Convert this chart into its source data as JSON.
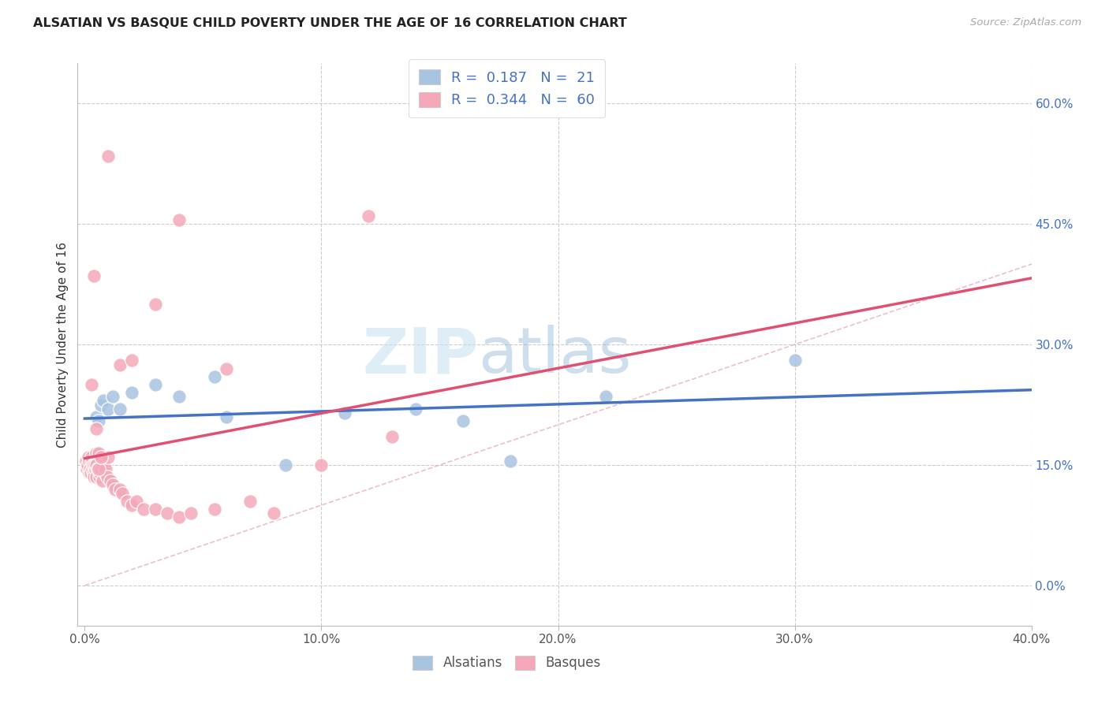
{
  "title": "ALSATIAN VS BASQUE CHILD POVERTY UNDER THE AGE OF 16 CORRELATION CHART",
  "source": "Source: ZipAtlas.com",
  "xlabel_vals": [
    0,
    10,
    20,
    30,
    40
  ],
  "ylabel_vals": [
    0,
    15,
    30,
    45,
    60
  ],
  "ylabel_label": "Child Poverty Under the Age of 16",
  "legend_labels": [
    "Alsatians",
    "Basques"
  ],
  "legend_R": [
    "0.187",
    "0.344"
  ],
  "legend_N": [
    "21",
    "60"
  ],
  "alsatian_color": "#a8c4e0",
  "basque_color": "#f4a8b8",
  "alsatian_line_color": "#4472C4",
  "basque_line_color": "#E05070",
  "diagonal_color": "#e8b0c0",
  "watermark_zip": "ZIP",
  "watermark_atlas": "atlas",
  "als_x": [
    0.2,
    0.3,
    0.5,
    0.6,
    0.7,
    0.8,
    1.0,
    1.2,
    1.5,
    2.0,
    3.0,
    4.0,
    5.5,
    6.0,
    8.5,
    11.0,
    14.0,
    16.0,
    18.0,
    22.0,
    30.0
  ],
  "als_y": [
    14.5,
    15.0,
    21.0,
    20.5,
    22.5,
    23.0,
    22.0,
    23.5,
    22.0,
    24.0,
    25.0,
    23.5,
    26.0,
    21.0,
    15.0,
    21.5,
    22.0,
    20.5,
    15.5,
    23.5,
    28.0
  ],
  "bas_x": [
    0.05,
    0.1,
    0.12,
    0.15,
    0.18,
    0.2,
    0.22,
    0.25,
    0.28,
    0.3,
    0.32,
    0.35,
    0.38,
    0.4,
    0.42,
    0.45,
    0.48,
    0.5,
    0.5,
    0.55,
    0.6,
    0.62,
    0.65,
    0.7,
    0.75,
    0.8,
    0.85,
    0.9,
    0.95,
    1.0,
    1.1,
    1.2,
    1.3,
    1.5,
    1.6,
    1.8,
    2.0,
    2.2,
    2.5,
    3.0,
    3.5,
    4.0,
    4.5,
    5.5,
    6.0,
    7.0,
    8.0,
    10.0,
    12.0,
    13.0,
    0.3,
    0.4,
    0.5,
    0.6,
    0.7,
    1.0,
    1.5,
    2.0,
    3.0,
    4.0
  ],
  "bas_y": [
    15.5,
    14.5,
    15.0,
    16.0,
    14.0,
    15.5,
    14.5,
    14.0,
    15.5,
    16.0,
    14.5,
    15.0,
    14.0,
    13.5,
    15.0,
    14.5,
    13.5,
    16.5,
    15.0,
    14.5,
    16.5,
    13.5,
    14.0,
    14.5,
    13.0,
    15.0,
    14.0,
    14.5,
    13.5,
    16.0,
    13.0,
    12.5,
    12.0,
    12.0,
    11.5,
    10.5,
    10.0,
    10.5,
    9.5,
    9.5,
    9.0,
    8.5,
    9.0,
    9.5,
    27.0,
    10.5,
    9.0,
    15.0,
    46.0,
    18.5,
    25.0,
    38.5,
    19.5,
    14.5,
    16.0,
    53.5,
    27.5,
    28.0,
    35.0,
    45.5
  ]
}
